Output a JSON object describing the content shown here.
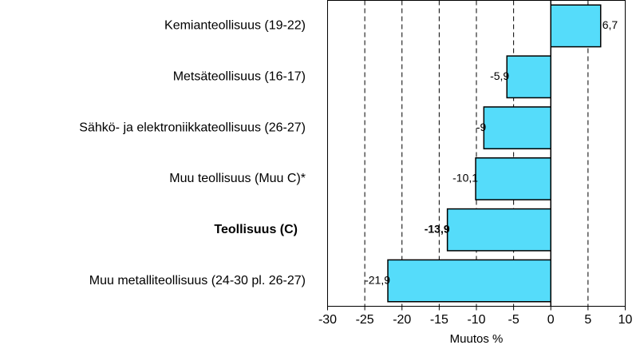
{
  "chart_data": {
    "type": "barh",
    "categories": [
      "Kemianteollisuus (19-22)",
      "Metsäteollisuus (16-17)",
      "Sähkö- ja elektroniikkateollisuus (26-27)",
      "Muu teollisuus (Muu C)*",
      "Teollisuus (C)",
      "Muu metalliteollisuus (24-30 pl. 26-27)"
    ],
    "values": [
      6.7,
      -5.9,
      -9,
      -10.1,
      -13.9,
      -21.9
    ],
    "value_labels": [
      "6,7",
      "-5,9",
      "-9",
      "-10,1",
      "-13,9",
      "-21,9"
    ],
    "color": "#55dcfa",
    "highlight": 4,
    "xlabel": "Muutos %",
    "xlim": [
      -30,
      10
    ],
    "xticks": [
      -30,
      -25,
      -20,
      -15,
      -10,
      -5,
      0,
      5,
      10
    ],
    "grid": true
  }
}
